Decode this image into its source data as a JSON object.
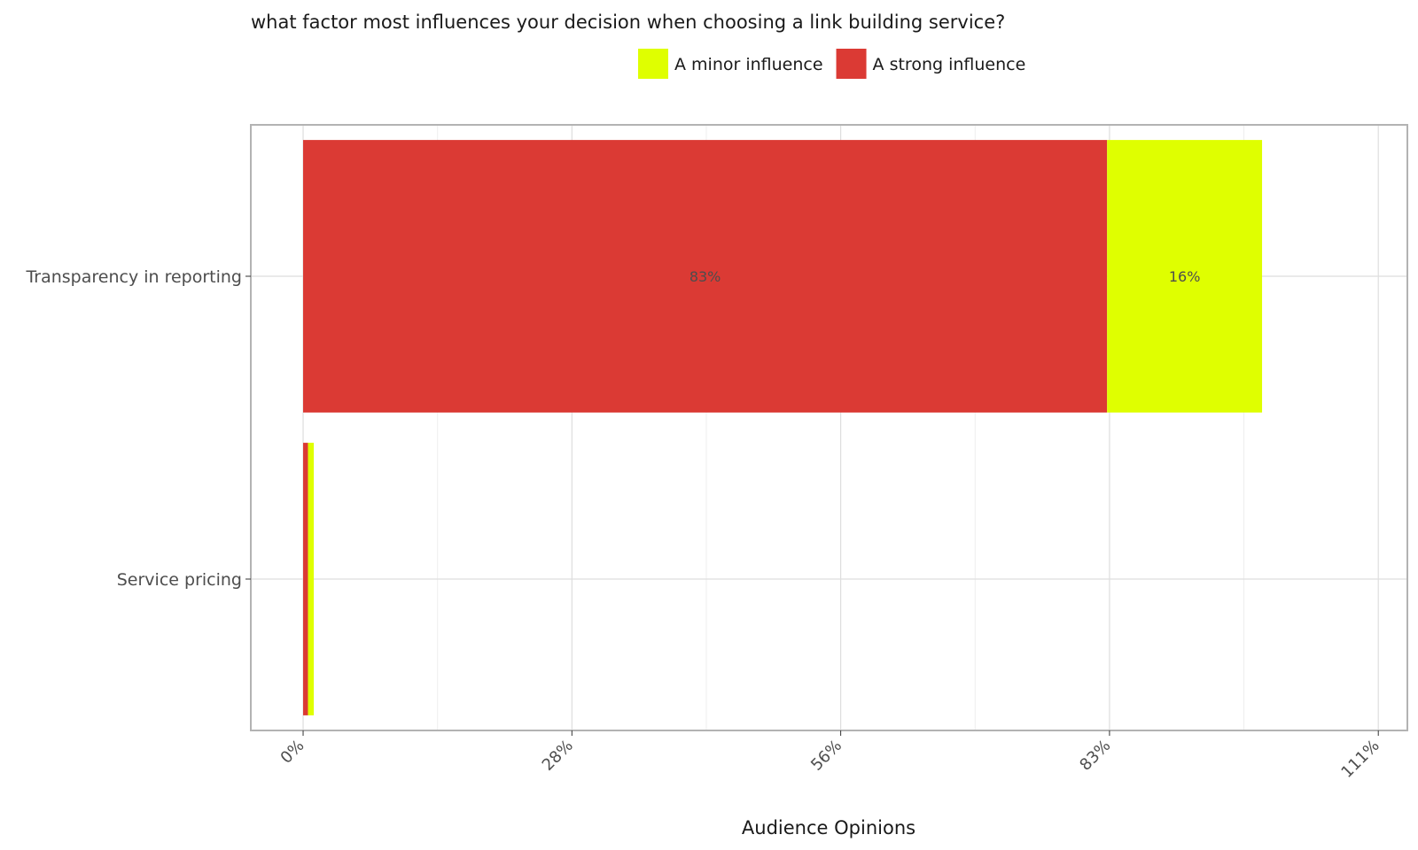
{
  "chart_data": {
    "type": "bar",
    "orientation": "horizontal",
    "stacked": true,
    "title": "what factor most influences your decision when choosing a link building service?",
    "xlabel": "Audience Opinions",
    "ylabel": "",
    "categories": [
      "Transparency in reporting",
      "Service pricing"
    ],
    "series": [
      {
        "name": "A strong influence",
        "color": "#db3a34",
        "values": [
          83,
          0.5
        ],
        "labels": [
          "83%",
          ""
        ]
      },
      {
        "name": "A minor influence",
        "color": "#dfff00",
        "values": [
          16,
          0.6
        ],
        "labels": [
          "16%",
          ""
        ]
      }
    ],
    "legend_order": [
      "A minor influence",
      "A strong influence"
    ],
    "legend_position": "top",
    "xlim": [
      -5.4,
      114
    ],
    "x_ticks": [
      0,
      27.75,
      55.5,
      83.25,
      111
    ],
    "x_tick_labels": [
      "0%",
      "28%",
      "56%",
      "83%",
      "111%"
    ],
    "grid": true
  }
}
